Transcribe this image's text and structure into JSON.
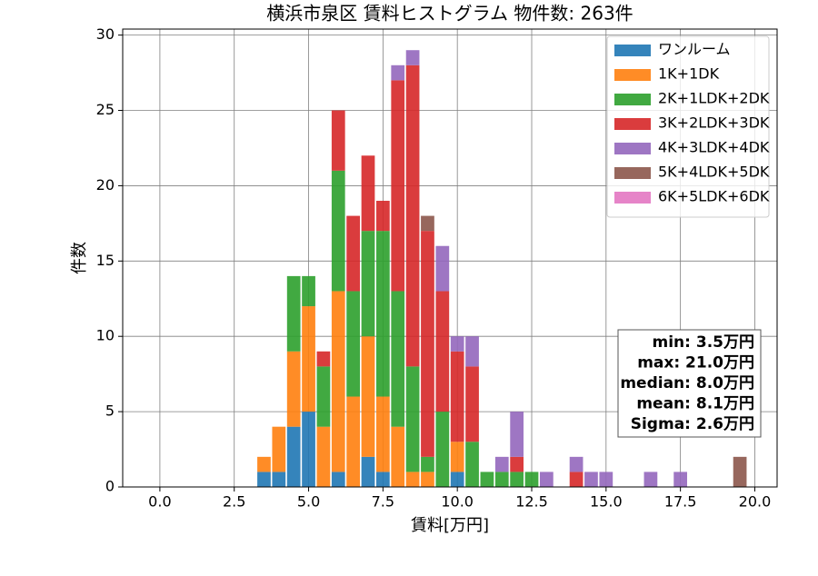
{
  "chart_data": {
    "type": "histogram",
    "title": "横浜市泉区 賃料ヒストグラム  物件数: 263件",
    "xlabel": "賃料[万円]",
    "ylabel": "件数",
    "bins": [
      -0.25,
      0.25,
      0.75,
      1.25,
      1.75,
      2.25,
      2.75,
      3.25,
      3.75,
      4.25,
      4.75,
      5.25,
      5.75,
      6.25,
      6.75,
      7.25,
      7.75,
      8.25,
      8.75,
      9.25,
      9.75,
      10.25,
      10.75,
      11.25,
      11.75,
      12.25,
      12.75,
      13.25,
      13.75,
      14.25,
      14.75,
      15.25,
      15.75,
      16.25,
      16.75,
      17.25,
      17.75,
      18.25,
      18.75,
      19.25,
      19.75
    ],
    "series": [
      {
        "name": "ワンルーム",
        "color": "#1f77b4",
        "values": [
          0,
          0,
          0,
          0,
          0,
          0,
          0,
          1,
          1,
          4,
          5,
          0,
          1,
          0,
          2,
          1,
          0,
          0,
          0,
          0,
          1,
          0,
          0,
          0,
          0,
          0,
          0,
          0,
          0,
          0,
          0,
          0,
          0,
          0,
          0,
          0,
          0,
          0,
          0,
          0
        ]
      },
      {
        "name": "1K+1DK",
        "color": "#ff7f0e",
        "values": [
          0,
          0,
          0,
          0,
          0,
          0,
          0,
          1,
          3,
          5,
          7,
          4,
          12,
          6,
          8,
          5,
          4,
          1,
          1,
          0,
          2,
          0,
          0,
          0,
          0,
          0,
          0,
          0,
          0,
          0,
          0,
          0,
          0,
          0,
          0,
          0,
          0,
          0,
          0,
          0
        ]
      },
      {
        "name": "2K+1LDK+2DK",
        "color": "#2ca02c",
        "values": [
          0,
          0,
          0,
          0,
          0,
          0,
          0,
          0,
          0,
          5,
          2,
          4,
          8,
          7,
          7,
          11,
          9,
          7,
          1,
          5,
          0,
          3,
          1,
          1,
          1,
          1,
          0,
          0,
          0,
          0,
          0,
          0,
          0,
          0,
          0,
          0,
          0,
          0,
          0,
          0
        ]
      },
      {
        "name": "3K+2LDK+3DK",
        "color": "#d62728",
        "values": [
          0,
          0,
          0,
          0,
          0,
          0,
          0,
          0,
          0,
          0,
          0,
          1,
          4,
          5,
          5,
          2,
          14,
          20,
          15,
          8,
          6,
          5,
          0,
          0,
          1,
          0,
          0,
          0,
          1,
          0,
          0,
          0,
          0,
          0,
          0,
          0,
          0,
          0,
          0,
          0
        ]
      },
      {
        "name": "4K+3LDK+4DK",
        "color": "#9467bd",
        "values": [
          0,
          0,
          0,
          0,
          0,
          0,
          0,
          0,
          0,
          0,
          0,
          0,
          0,
          0,
          0,
          0,
          1,
          1,
          0,
          3,
          1,
          2,
          0,
          1,
          3,
          0,
          1,
          0,
          1,
          1,
          1,
          0,
          0,
          1,
          0,
          1,
          0,
          0,
          0,
          0
        ]
      },
      {
        "name": "5K+4LDK+5DK",
        "color": "#8c564b",
        "values": [
          0,
          0,
          0,
          0,
          0,
          0,
          0,
          0,
          0,
          0,
          0,
          0,
          0,
          0,
          0,
          0,
          0,
          0,
          1,
          0,
          0,
          0,
          0,
          0,
          0,
          0,
          0,
          0,
          0,
          0,
          0,
          0,
          0,
          0,
          0,
          0,
          0,
          0,
          0,
          2
        ]
      },
      {
        "name": "6K+5LDK+6DK",
        "color": "#e377c2",
        "values": [
          0,
          0,
          0,
          0,
          0,
          0,
          0,
          0,
          0,
          0,
          0,
          0,
          0,
          0,
          0,
          0,
          0,
          0,
          0,
          0,
          0,
          0,
          0,
          0,
          0,
          0,
          0,
          0,
          0,
          0,
          0,
          0,
          0,
          0,
          0,
          0,
          0,
          0,
          0,
          0
        ]
      }
    ],
    "xlim": [
      -1.25,
      20.75
    ],
    "xticks": [
      {
        "value": 0,
        "label": "0.0"
      },
      2.5,
      {
        "value": 5,
        "label": "5.0"
      },
      7.5,
      {
        "value": 10,
        "label": "10.0"
      },
      12.5,
      {
        "value": 15,
        "label": "15.0"
      },
      17.5,
      {
        "value": 20,
        "label": "20.0"
      }
    ],
    "ylim": [
      0,
      30.4
    ],
    "yticks": [
      0,
      5,
      10,
      15,
      20,
      25,
      30
    ],
    "grid": true,
    "legend": "upper right",
    "stacked": true,
    "annotations": [
      "min: 3.5万円",
      "max: 21.0万円",
      "median: 8.0万円",
      "mean: 8.1万円",
      "Sigma: 2.6万円"
    ]
  }
}
